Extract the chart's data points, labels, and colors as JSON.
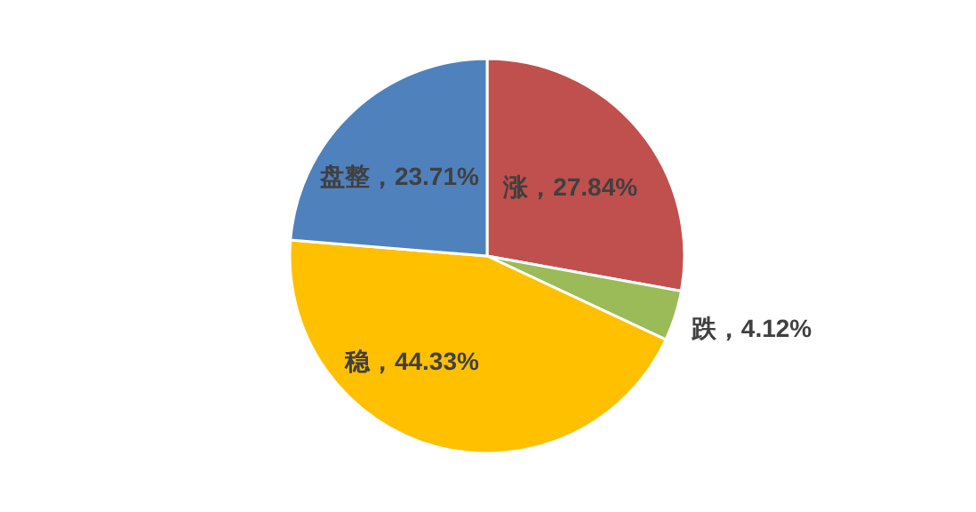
{
  "chart_data": {
    "type": "pie",
    "categories": [
      "涨",
      "跌",
      "稳",
      "盘整"
    ],
    "values": [
      27.84,
      4.12,
      44.33,
      23.71
    ],
    "colors": [
      "#c0504d",
      "#9bbb59",
      "#ffc000",
      "#4f81bd"
    ],
    "value_labels": [
      "，27.84%",
      "，4.12%",
      "，44.33%",
      "，23.71%"
    ]
  }
}
